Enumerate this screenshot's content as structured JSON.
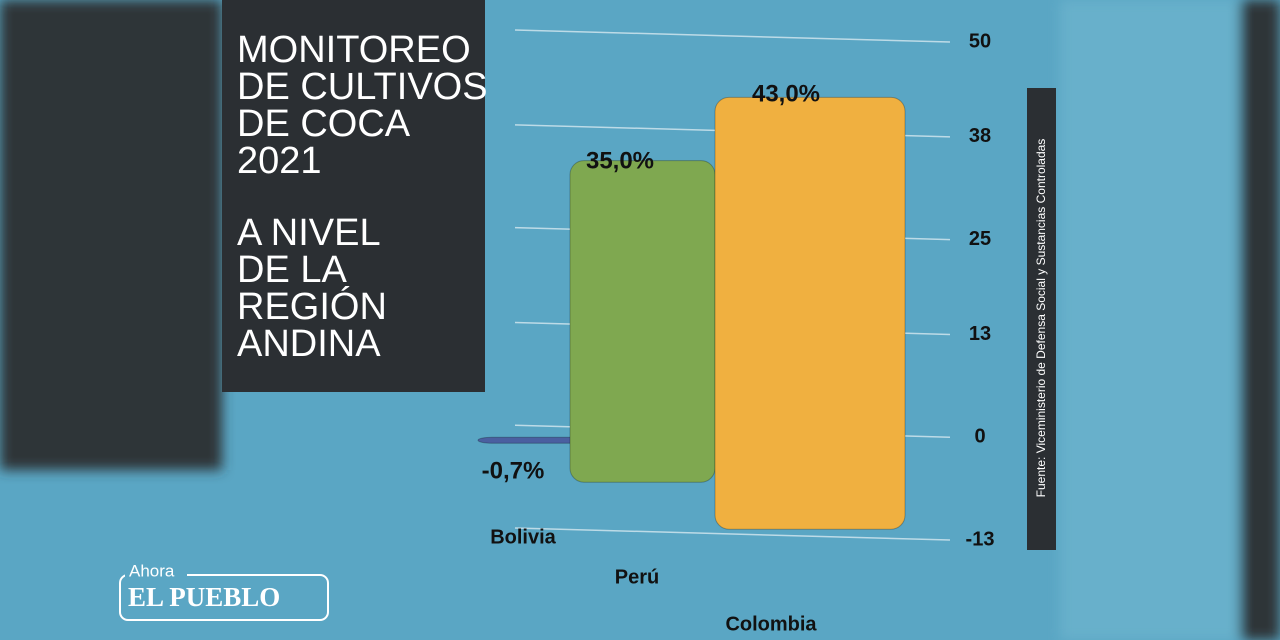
{
  "chart_data": {
    "type": "bar",
    "title": [
      "MONITOREO",
      "DE CULTIVOS",
      "DE COCA",
      "2021"
    ],
    "subtitle": [
      "A NIVEL",
      "DE LA",
      "REGIÓN",
      "ANDINA"
    ],
    "source": "Fuente: Viceministerio de Defensa Social y Sustancias Controladas",
    "categories": [
      "Bolivia",
      "Perú",
      "Colombia"
    ],
    "values": [
      -0.7,
      35.0,
      43.0
    ],
    "value_labels": [
      "-0,7%",
      "35,0%",
      "43,0%"
    ],
    "colors": [
      "#4a5fa0",
      "#7fa850",
      "#f0b040"
    ],
    "ylim": [
      -13,
      50
    ],
    "yticks": [
      50,
      38,
      25,
      13,
      0,
      -13
    ],
    "grid": true
  },
  "logo": {
    "top": "Ahora",
    "name": "EL PUEBLO"
  }
}
